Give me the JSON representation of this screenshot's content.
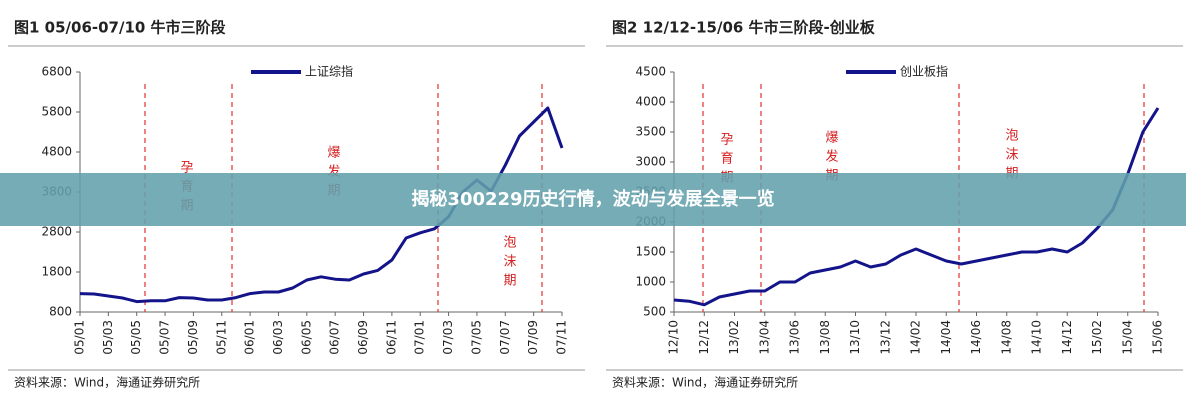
{
  "chart_data": [
    {
      "type": "line",
      "title": "图1  05/06-07/10 牛市三阶段",
      "categories": [
        "05/01",
        null,
        "05/03",
        null,
        "05/05",
        null,
        "05/07",
        null,
        "05/09",
        null,
        "05/11",
        null,
        "06/01",
        null,
        "06/03",
        null,
        "06/05",
        null,
        "06/07",
        null,
        "06/09",
        null,
        "06/11",
        null,
        "07/01",
        null,
        "07/03",
        null,
        "07/05",
        null,
        "07/07",
        null,
        "07/09",
        null,
        "07/11"
      ],
      "series": [
        {
          "name": "上证综指",
          "color": "#14148a",
          "values": [
            1260,
            1250,
            1200,
            1150,
            1060,
            1080,
            1080,
            1160,
            1150,
            1100,
            1100,
            1160,
            1260,
            1300,
            1300,
            1400,
            1600,
            1680,
            1620,
            1600,
            1750,
            1840,
            2100,
            2650,
            2780,
            2880,
            3180,
            3800,
            4100,
            3820,
            4470,
            5200,
            5550,
            5900,
            4900
          ]
        }
      ],
      "ylim": [
        800,
        6800
      ],
      "yticks": [
        800,
        1800,
        2800,
        3800,
        4800,
        5800,
        6800
      ],
      "annotations": [
        "孕育期",
        "爆发期",
        "泡沫期"
      ],
      "source": "资料来源：Wind，海通证券研究所"
    },
    {
      "type": "line",
      "title": "图2  12/12-15/06 牛市三阶段-创业板",
      "categories": [
        "12/10",
        null,
        "12/12",
        null,
        "13/02",
        null,
        "13/04",
        null,
        "13/06",
        null,
        "13/08",
        null,
        "13/10",
        null,
        "13/12",
        null,
        "14/02",
        null,
        "14/04",
        null,
        "14/06",
        null,
        "14/08",
        null,
        "14/10",
        null,
        "14/12",
        null,
        "15/02",
        null,
        "15/04",
        null,
        "15/06"
      ],
      "series": [
        {
          "name": "创业板指",
          "color": "#14148a",
          "values": [
            700,
            680,
            620,
            750,
            800,
            850,
            850,
            1000,
            1000,
            1150,
            1200,
            1250,
            1350,
            1250,
            1300,
            1450,
            1550,
            1450,
            1350,
            1300,
            1350,
            1400,
            1450,
            1500,
            1500,
            1550,
            1500,
            1650,
            1900,
            2200,
            2800,
            3500,
            3900
          ]
        }
      ],
      "ylim": [
        500,
        4500
      ],
      "yticks": [
        500,
        1000,
        1500,
        2000,
        2500,
        3000,
        3500,
        4000,
        4500
      ],
      "annotations": [
        "孕育期",
        "爆发期",
        "泡沫期"
      ],
      "source": "资料来源：Wind，海通证券研究所"
    }
  ],
  "banner": "揭秘300229历史行情，波动与发展全景一览"
}
